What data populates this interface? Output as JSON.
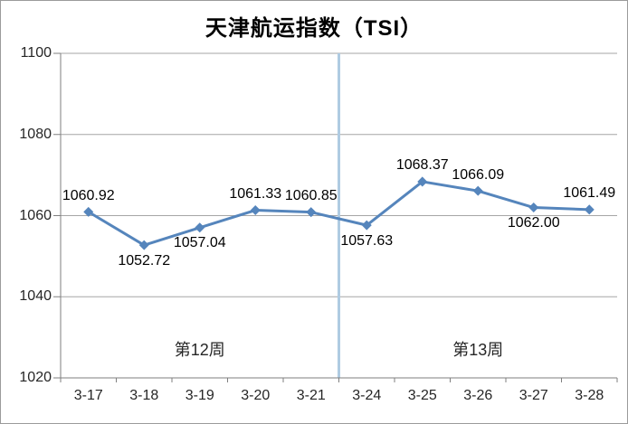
{
  "chart_data": {
    "type": "line",
    "title": "天津航运指数（TSI）",
    "categories": [
      "3-17",
      "3-18",
      "3-19",
      "3-20",
      "3-21",
      "3-24",
      "3-25",
      "3-26",
      "3-27",
      "3-28"
    ],
    "series": [
      {
        "name": "TSI",
        "values": [
          1060.92,
          1052.72,
          1057.04,
          1061.33,
          1060.85,
          1057.63,
          1068.37,
          1066.09,
          1062.0,
          1061.49
        ],
        "labels": [
          "1060.92",
          "1052.72",
          "1057.04",
          "1061.33",
          "1060.85",
          "1057.63",
          "1068.37",
          "1066.09",
          "1062.00",
          "1061.49"
        ],
        "label_position": [
          "above",
          "below",
          "below",
          "above",
          "above",
          "below",
          "above",
          "above",
          "below",
          "above"
        ]
      }
    ],
    "xlabel": "",
    "ylabel": "",
    "ylim": [
      1020,
      1100
    ],
    "yticks": [
      1020,
      1040,
      1060,
      1080,
      1100
    ],
    "grid": "horizontal",
    "legend": "none",
    "marker": "diamond",
    "annotations": [
      {
        "label": "第12周",
        "center_category_index": 2
      },
      {
        "label": "第13周",
        "center_category_index": 7
      }
    ],
    "divider_after_category_index": 4,
    "colors": {
      "line": "#5585BC",
      "marker": "#5585BC",
      "divider": "#AFCBE2",
      "grid": "#A6A6A6",
      "axis": "#7F7F7F",
      "tick_text": "#262626",
      "data_label_text": "#000000",
      "background": "#FFFFFF",
      "border": "#9B9B9B"
    }
  }
}
